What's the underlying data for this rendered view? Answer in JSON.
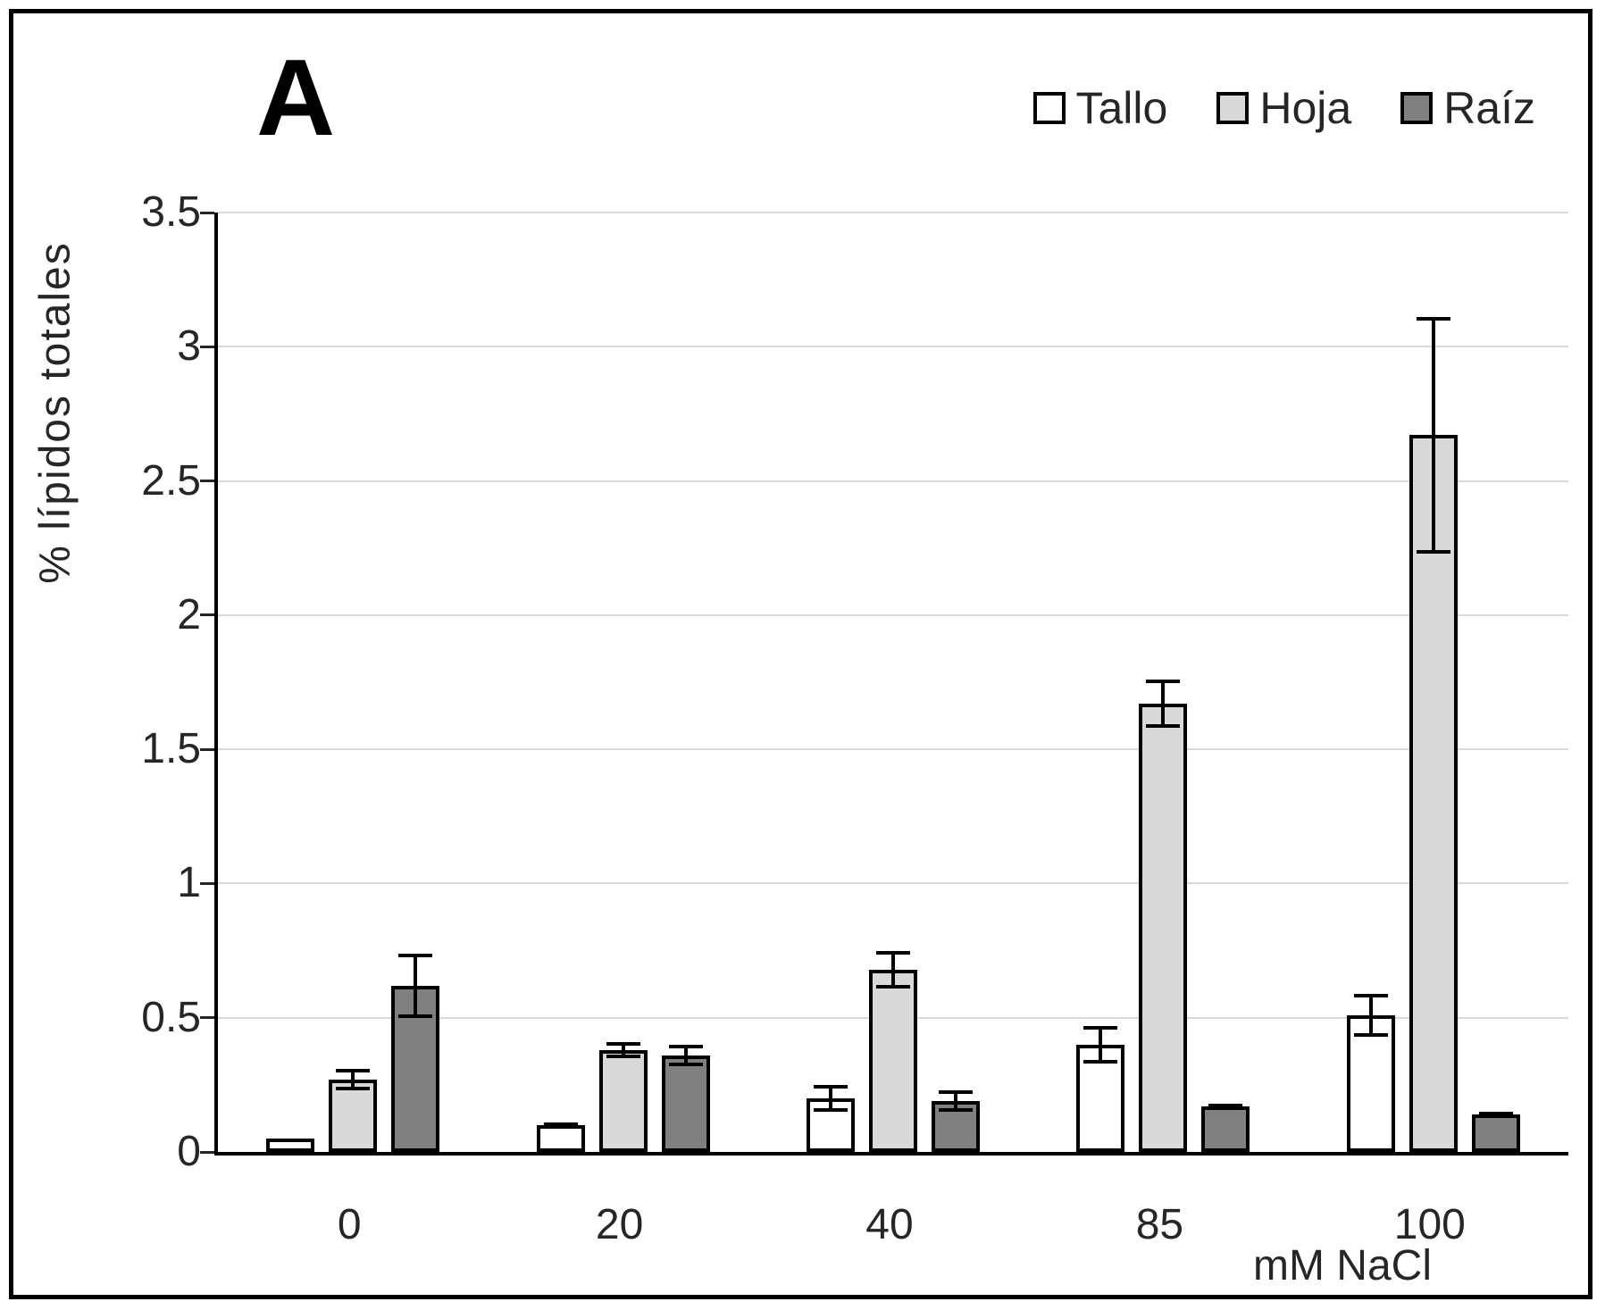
{
  "panel_label": "A",
  "chart_data": {
    "type": "bar",
    "title": "",
    "categories": [
      "0",
      "20",
      "40",
      "85",
      "100"
    ],
    "xlabel": "mM NaCl",
    "ylabel": "% lípidos totales",
    "ylim": [
      0,
      3.5
    ],
    "ytick_step": 0.5,
    "yticks": [
      "0",
      "0.5",
      "1",
      "1.5",
      "2",
      "2.5",
      "3",
      "3.5"
    ],
    "grid": true,
    "legend_position": "top-right",
    "series": [
      {
        "name": "Tallo",
        "fill": "#ffffff",
        "values": [
          0.05,
          0.1,
          0.2,
          0.4,
          0.51
        ],
        "errors": [
          0,
          0.01,
          0.05,
          0.07,
          0.08
        ]
      },
      {
        "name": "Hoja",
        "fill": "#d9d9d9",
        "values": [
          0.27,
          0.38,
          0.68,
          1.67,
          2.67
        ],
        "errors": [
          0.04,
          0.03,
          0.07,
          0.09,
          0.44
        ]
      },
      {
        "name": "Raíz",
        "fill": "#808080",
        "values": [
          0.62,
          0.36,
          0.19,
          0.17,
          0.14
        ],
        "errors": [
          0.12,
          0.04,
          0.04,
          0.01,
          0.01
        ]
      }
    ],
    "colors": {
      "bar_border": "#000000",
      "grid": "#d9d9d9",
      "axis": "#000000",
      "text": "#262626"
    }
  }
}
